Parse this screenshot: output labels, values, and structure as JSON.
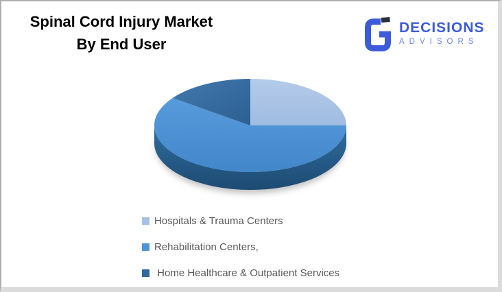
{
  "title": {
    "line1": "Spinal Cord Injury Market",
    "line2": "By End User"
  },
  "logo": {
    "brand": "DECISIONS",
    "sub_brand": "ADVISORS",
    "brand_color": "#3D5BD9",
    "sub_brand_color": "#6E88E6",
    "icon_accent_color": "#26313F"
  },
  "chart_data": {
    "type": "pie",
    "three_d": true,
    "title": "Spinal Cord Injury Market By End User",
    "direction": "clockwise",
    "start_angle_deg": 0,
    "legend_position": "bottom",
    "legend_text_color": "#595959",
    "slices": [
      {
        "label": "Hospitals & Trauma Centers",
        "value": 25,
        "color": "#B4CBEA",
        "color2": "#A0BCE1",
        "legend_color": "#A5C1E6"
      },
      {
        "label": "Rehabilitation Centers,",
        "value": 60,
        "color": "#579BDC",
        "color2": "#4287CA",
        "legend_color": "#4E96D9"
      },
      {
        "label": " Home Healthcare & Outpatient Services",
        "value": 15,
        "color": "#4379AE",
        "color2": "#2C5F92",
        "legend_color": "#31689D"
      }
    ],
    "side_color": "#2F6DA0",
    "side_color2": "#1D4B72"
  }
}
